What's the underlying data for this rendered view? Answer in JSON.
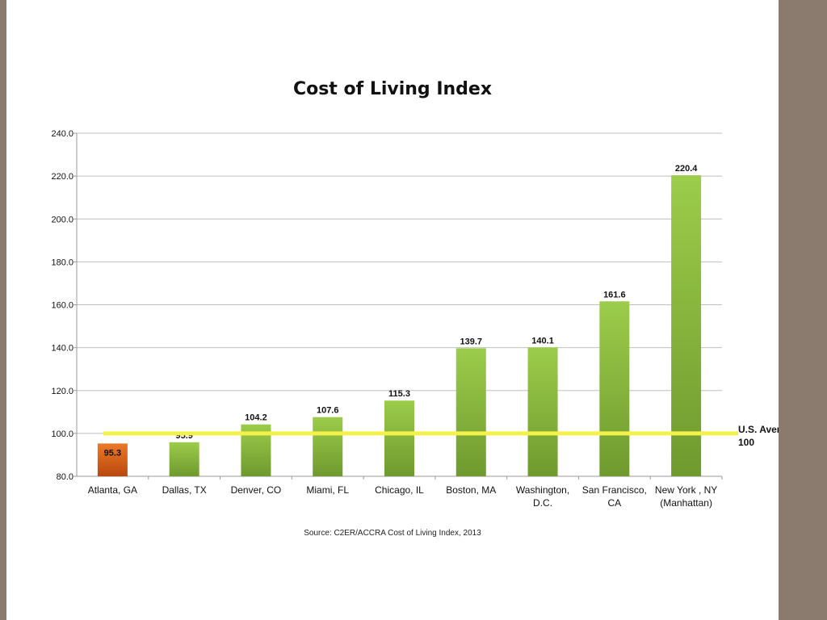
{
  "chart_data": {
    "type": "bar",
    "title": "Cost of Living Index",
    "categories": [
      "Atlanta, GA",
      "Dallas, TX",
      "Denver, CO",
      "Miami, FL",
      "Chicago, IL",
      "Boston, MA",
      "Washington, D.C.",
      "San Francisco, CA",
      "New York , NY (Manhattan)"
    ],
    "category_lines": [
      [
        "Atlanta, GA"
      ],
      [
        "Dallas, TX"
      ],
      [
        "Denver, CO"
      ],
      [
        "Miami, FL"
      ],
      [
        "Chicago, IL"
      ],
      [
        "Boston, MA"
      ],
      [
        "Washington,",
        "D.C."
      ],
      [
        "San Francisco,",
        "CA"
      ],
      [
        "New York , NY",
        "(Manhattan)"
      ]
    ],
    "values": [
      95.3,
      95.9,
      104.2,
      107.6,
      115.3,
      139.7,
      140.1,
      161.6,
      220.4
    ],
    "value_labels": [
      "95.3",
      "95.9",
      "104.2",
      "107.6",
      "115.3",
      "139.7",
      "140.1",
      "161.6",
      "220.4"
    ],
    "highlight_index": 0,
    "ylim": [
      80,
      240
    ],
    "yticks": [
      "80.0",
      "100.0",
      "120.0",
      "140.0",
      "160.0",
      "180.0",
      "200.0",
      "220.0",
      "240.0"
    ],
    "grid": true,
    "reference_line": {
      "value": 100,
      "label_lines": [
        "U.S. Average:",
        "100"
      ]
    },
    "colors": {
      "bar": "#8dc03f",
      "highlight": "#e06a1c",
      "reference": "#f4f24a",
      "grid": "#bfbfbf"
    }
  },
  "source_note": "Source: C2ER/ACCRA Cost of Living Index, 2013"
}
